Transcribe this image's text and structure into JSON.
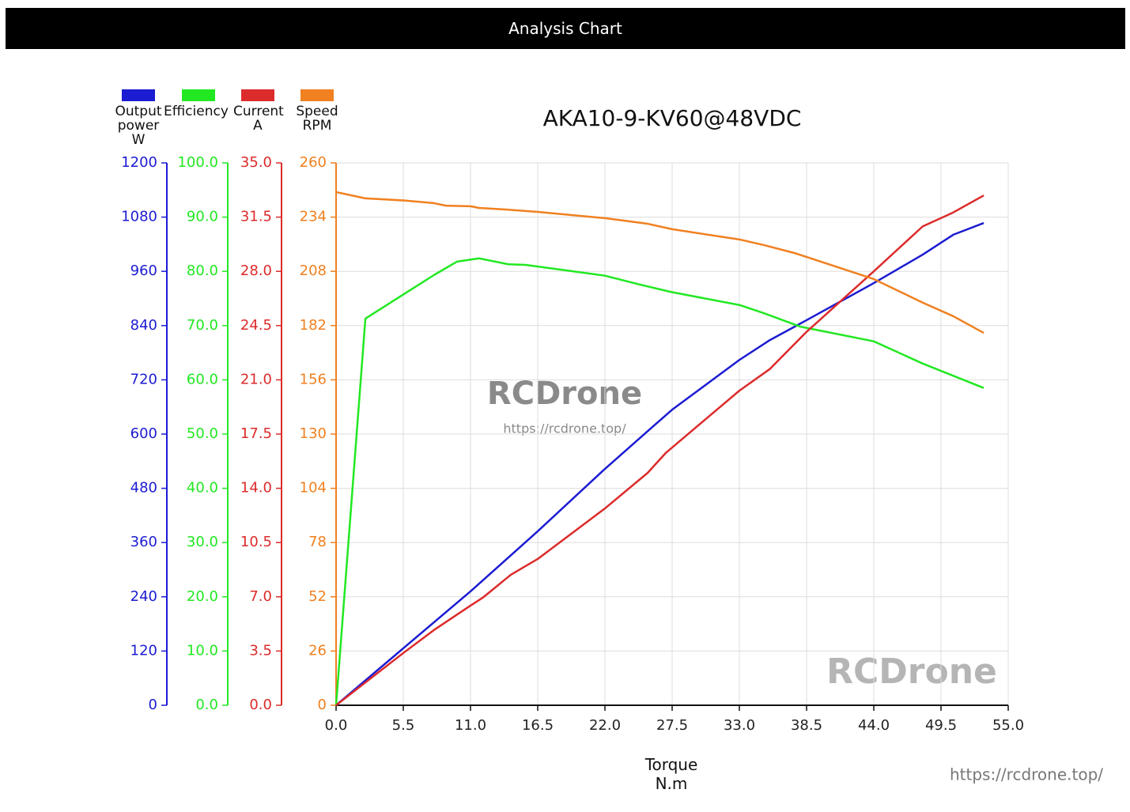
{
  "header": {
    "title": "Analysis Chart"
  },
  "watermarks": [
    "RCDrone",
    "https://rcdrone.top/",
    "RCDrone",
    "https://rcdrone.top/"
  ],
  "chart_data": {
    "type": "line",
    "title": "AKA10-9-KV60@48VDC",
    "x_label": "Torque N.m",
    "xlim": [
      0,
      55
    ],
    "xticks": [
      {
        "value": 0,
        "label": "0.0"
      },
      5.5,
      {
        "value": 11,
        "label": "11.0"
      },
      16.5,
      {
        "value": 22,
        "label": "22.0"
      },
      27.5,
      {
        "value": 33,
        "label": "33.0"
      },
      38.5,
      {
        "value": 44,
        "label": "44.0"
      },
      49.5,
      {
        "value": 55,
        "label": "55.0"
      }
    ],
    "grid": true,
    "series": [
      {
        "name": "Output power W",
        "color": "#1c1cd2",
        "ylim": [
          0,
          1200
        ],
        "yticks": [
          0,
          120,
          240,
          360,
          480,
          600,
          720,
          840,
          960,
          1080,
          1200
        ],
        "x": [
          0,
          5.5,
          11,
          16.5,
          22,
          25.9,
          27.5,
          33,
          35.5,
          38.5,
          44,
          48,
          50.5,
          53
        ],
        "values": [
          0,
          126,
          252,
          385,
          523,
          616,
          654,
          764,
          808,
          852,
          934,
          997,
          1041,
          1067
        ]
      },
      {
        "name": "Efficiency",
        "color": "#22e822",
        "ylim": [
          0,
          100
        ],
        "yticks": [
          {
            "value": 0,
            "label": "0.0"
          },
          {
            "value": 10,
            "label": "10.0"
          },
          {
            "value": 20,
            "label": "20.0"
          },
          {
            "value": 30,
            "label": "30.0"
          },
          {
            "value": 40,
            "label": "40.0"
          },
          {
            "value": 50,
            "label": "50.0"
          },
          {
            "value": 60,
            "label": "60.0"
          },
          {
            "value": 70,
            "label": "70.0"
          },
          {
            "value": 80,
            "label": "80.0"
          },
          {
            "value": 90,
            "label": "90.0"
          },
          {
            "value": 100,
            "label": "100.0"
          }
        ],
        "x": [
          0,
          2.4,
          8,
          9.9,
          11.7,
          14.1,
          15.5,
          22,
          24.8,
          27.4,
          33,
          35,
          38,
          44,
          48,
          53
        ],
        "values": [
          0,
          71.3,
          79.3,
          81.8,
          82.4,
          81.3,
          81.2,
          79.2,
          77.6,
          76.2,
          73.8,
          72.3,
          69.8,
          67.1,
          63.0,
          58.5
        ]
      },
      {
        "name": "Current A",
        "color": "#dc2b2b",
        "ylim": [
          0,
          35
        ],
        "yticks": [
          {
            "value": 0,
            "label": "0.0"
          },
          3.5,
          {
            "value": 7,
            "label": "7.0"
          },
          10.5,
          {
            "value": 14,
            "label": "14.0"
          },
          17.5,
          {
            "value": 21,
            "label": "21.0"
          },
          24.5,
          {
            "value": 28,
            "label": "28.0"
          },
          31.5,
          {
            "value": 35,
            "label": "35.0"
          }
        ],
        "x": [
          0,
          5.5,
          8,
          11,
          12,
          14.3,
          16.5,
          22,
          25.5,
          27,
          33,
          35.5,
          38.5,
          44,
          48,
          50.5,
          53
        ],
        "values": [
          0,
          3.37,
          4.85,
          6.43,
          6.94,
          8.42,
          9.44,
          12.7,
          15.0,
          16.3,
          20.3,
          21.7,
          24.1,
          28.0,
          30.9,
          31.8,
          32.9
        ]
      },
      {
        "name": "Speed RPM",
        "color": "#f08020",
        "ylim": [
          0,
          260
        ],
        "yticks": [
          0,
          26,
          52,
          78,
          104,
          130,
          156,
          182,
          208,
          234,
          260
        ],
        "x": [
          0,
          2.4,
          5.5,
          8,
          9,
          11,
          11.7,
          14,
          16.5,
          22,
          25.5,
          27.5,
          33,
          35,
          37.5,
          44,
          48,
          50.5,
          53
        ],
        "values": [
          246,
          243,
          242,
          240.7,
          239.5,
          239.2,
          238.4,
          237.6,
          236.5,
          233.5,
          230.8,
          228.2,
          223.3,
          220.6,
          216.8,
          204.3,
          193,
          186.5,
          178.5
        ]
      }
    ]
  }
}
